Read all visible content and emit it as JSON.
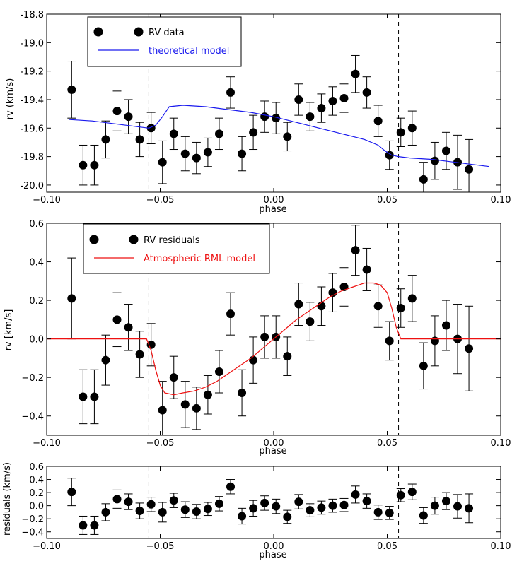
{
  "colors": {
    "data": "#000000",
    "model": "#1a1aee",
    "rml": "#ee1111"
  },
  "chart_data": [
    {
      "type": "scatter",
      "panel": "top",
      "xlabel": "phase",
      "ylabel": "rv (km/s)",
      "xlim": [
        -0.1,
        0.1
      ],
      "ylim": [
        -20.05,
        -18.8
      ],
      "xticks": [
        -0.1,
        -0.05,
        0.0,
        0.05,
        0.1
      ],
      "xtick_labels": [
        "−0.10",
        "−0.05",
        "0.00",
        "0.05",
        "0.10"
      ],
      "yticks": [
        -20.0,
        -19.8,
        -19.6,
        -19.4,
        -19.2,
        -19.0,
        -18.8
      ],
      "ytick_labels": [
        "-20.0",
        "-19.8",
        "-19.6",
        "-19.4",
        "-19.2",
        "-19.0",
        "-18.8"
      ],
      "vlines": [
        -0.055,
        0.055
      ],
      "legend": {
        "placement": "top-left",
        "entries": [
          {
            "label": "RV data",
            "style": "marker"
          },
          {
            "label": "theoretical model",
            "style": "line"
          }
        ]
      },
      "series": [
        {
          "name": "RV data",
          "x": [
            -0.089,
            -0.084,
            -0.079,
            -0.074,
            -0.069,
            -0.064,
            -0.059,
            -0.054,
            -0.049,
            -0.044,
            -0.039,
            -0.034,
            -0.029,
            -0.024,
            -0.019,
            -0.014,
            -0.009,
            -0.004,
            0.001,
            0.006,
            0.011,
            0.016,
            0.021,
            0.026,
            0.031,
            0.036,
            0.041,
            0.046,
            0.051,
            0.056,
            0.061,
            0.066,
            0.071,
            0.076,
            0.081,
            0.086
          ],
          "y": [
            -19.33,
            -19.86,
            -19.86,
            -19.68,
            -19.48,
            -19.52,
            -19.68,
            -19.6,
            -19.84,
            -19.64,
            -19.78,
            -19.81,
            -19.77,
            -19.64,
            -19.35,
            -19.78,
            -19.63,
            -19.52,
            -19.53,
            -19.66,
            -19.4,
            -19.52,
            -19.46,
            -19.41,
            -19.39,
            -19.22,
            -19.35,
            -19.55,
            -19.79,
            -19.63,
            -19.6,
            -19.96,
            -19.83,
            -19.76,
            -19.84,
            -19.89
          ],
          "err": [
            0.2,
            0.14,
            0.14,
            0.13,
            0.14,
            0.12,
            0.12,
            0.11,
            0.15,
            0.11,
            0.12,
            0.11,
            0.1,
            0.11,
            0.11,
            0.12,
            0.12,
            0.11,
            0.11,
            0.1,
            0.11,
            0.1,
            0.1,
            0.1,
            0.1,
            0.13,
            0.11,
            0.11,
            0.1,
            0.1,
            0.12,
            0.12,
            0.13,
            0.13,
            0.19,
            0.21
          ]
        },
        {
          "name": "theoretical model",
          "x": [
            -0.09,
            -0.08,
            -0.07,
            -0.06,
            -0.055,
            -0.052,
            -0.049,
            -0.046,
            -0.04,
            -0.03,
            -0.02,
            -0.01,
            0.0,
            0.01,
            0.02,
            0.03,
            0.04,
            0.046,
            0.049,
            0.052,
            0.055,
            0.06,
            0.07,
            0.08,
            0.09,
            0.095
          ],
          "y": [
            -19.54,
            -19.55,
            -19.57,
            -19.59,
            -19.6,
            -19.58,
            -19.52,
            -19.45,
            -19.44,
            -19.45,
            -19.47,
            -19.49,
            -19.52,
            -19.56,
            -19.6,
            -19.64,
            -19.68,
            -19.72,
            -19.76,
            -19.79,
            -19.8,
            -19.81,
            -19.82,
            -19.84,
            -19.86,
            -19.87
          ]
        }
      ]
    },
    {
      "type": "scatter",
      "panel": "middle",
      "xlabel": "phase",
      "ylabel": "rv [km/s]",
      "xlim": [
        -0.1,
        0.1
      ],
      "ylim": [
        -0.5,
        0.6
      ],
      "xticks": [
        -0.1,
        -0.05,
        0.0,
        0.05,
        0.1
      ],
      "xtick_labels": [
        "−0.10",
        "−0.05",
        "0.00",
        "0.05",
        "0.10"
      ],
      "yticks": [
        -0.4,
        -0.2,
        0.0,
        0.2,
        0.4,
        0.6
      ],
      "ytick_labels": [
        "−0.4",
        "−0.2",
        "0.0",
        "0.2",
        "0.4",
        "0.6"
      ],
      "vlines": [
        -0.055,
        0.055
      ],
      "legend": {
        "placement": "top-left",
        "entries": [
          {
            "label": "RV residuals",
            "style": "marker"
          },
          {
            "label": "Atmospheric RML model",
            "style": "line"
          }
        ]
      },
      "series": [
        {
          "name": "RV residuals",
          "x": [
            -0.089,
            -0.084,
            -0.079,
            -0.074,
            -0.069,
            -0.064,
            -0.059,
            -0.054,
            -0.049,
            -0.044,
            -0.039,
            -0.034,
            -0.029,
            -0.024,
            -0.019,
            -0.014,
            -0.009,
            -0.004,
            0.001,
            0.006,
            0.011,
            0.016,
            0.021,
            0.026,
            0.031,
            0.036,
            0.041,
            0.046,
            0.051,
            0.056,
            0.061,
            0.066,
            0.071,
            0.076,
            0.081,
            0.086
          ],
          "y": [
            0.21,
            -0.3,
            -0.3,
            -0.11,
            0.1,
            0.06,
            -0.08,
            -0.03,
            -0.37,
            -0.2,
            -0.34,
            -0.36,
            -0.29,
            -0.17,
            0.13,
            -0.28,
            -0.11,
            0.01,
            0.01,
            -0.09,
            0.18,
            0.09,
            0.17,
            0.24,
            0.27,
            0.46,
            0.36,
            0.17,
            -0.01,
            0.16,
            0.21,
            -0.14,
            -0.01,
            0.07,
            0.0,
            -0.05
          ],
          "err": [
            0.21,
            0.14,
            0.14,
            0.13,
            0.14,
            0.12,
            0.12,
            0.11,
            0.15,
            0.11,
            0.12,
            0.11,
            0.1,
            0.11,
            0.11,
            0.12,
            0.12,
            0.11,
            0.11,
            0.1,
            0.11,
            0.1,
            0.1,
            0.1,
            0.1,
            0.13,
            0.11,
            0.11,
            0.1,
            0.1,
            0.12,
            0.12,
            0.13,
            0.13,
            0.18,
            0.22
          ]
        },
        {
          "name": "Atmospheric RML model",
          "x": [
            -0.1,
            -0.056,
            -0.054,
            -0.052,
            -0.05,
            -0.048,
            -0.044,
            -0.04,
            -0.035,
            -0.03,
            -0.025,
            -0.02,
            -0.015,
            -0.01,
            -0.005,
            0.0,
            0.005,
            0.01,
            0.015,
            0.02,
            0.025,
            0.03,
            0.035,
            0.04,
            0.044,
            0.047,
            0.05,
            0.052,
            0.054,
            0.056,
            0.1
          ],
          "y": [
            0.0,
            0.0,
            -0.06,
            -0.16,
            -0.24,
            -0.28,
            -0.29,
            -0.28,
            -0.27,
            -0.25,
            -0.22,
            -0.18,
            -0.14,
            -0.1,
            -0.05,
            0.0,
            0.05,
            0.1,
            0.14,
            0.18,
            0.22,
            0.25,
            0.27,
            0.29,
            0.29,
            0.28,
            0.24,
            0.16,
            0.06,
            0.0,
            0.0
          ]
        }
      ]
    },
    {
      "type": "scatter",
      "panel": "bottom",
      "xlabel": "phase",
      "ylabel": "residuals (km/s)",
      "xlim": [
        -0.1,
        0.1
      ],
      "ylim": [
        -0.5,
        0.6
      ],
      "xticks": [
        -0.1,
        -0.05,
        0.0,
        0.05,
        0.1
      ],
      "xtick_labels": [
        "−0.10",
        "−0.05",
        "0.00",
        "0.05",
        "0.10"
      ],
      "yticks": [
        -0.4,
        -0.2,
        0.0,
        0.2,
        0.4,
        0.6
      ],
      "ytick_labels": [
        "−0.4",
        "−0.2",
        "0.0",
        "0.2",
        "0.4",
        "0.6"
      ],
      "vlines": [
        -0.055,
        0.055
      ],
      "series": [
        {
          "name": "residuals",
          "x": [
            -0.089,
            -0.084,
            -0.079,
            -0.074,
            -0.069,
            -0.064,
            -0.059,
            -0.054,
            -0.049,
            -0.044,
            -0.039,
            -0.034,
            -0.029,
            -0.024,
            -0.019,
            -0.014,
            -0.009,
            -0.004,
            0.001,
            0.006,
            0.011,
            0.016,
            0.021,
            0.026,
            0.031,
            0.036,
            0.041,
            0.046,
            0.051,
            0.056,
            0.061,
            0.066,
            0.071,
            0.076,
            0.081,
            0.086
          ],
          "y": [
            0.21,
            -0.3,
            -0.3,
            -0.1,
            0.1,
            0.06,
            -0.08,
            0.02,
            -0.1,
            0.08,
            -0.06,
            -0.09,
            -0.05,
            0.03,
            0.29,
            -0.16,
            -0.04,
            0.04,
            -0.01,
            -0.17,
            0.06,
            -0.07,
            -0.03,
            0.0,
            0.01,
            0.17,
            0.07,
            -0.1,
            -0.11,
            0.16,
            0.21,
            -0.15,
            0.0,
            0.07,
            -0.01,
            -0.04
          ],
          "err": [
            0.21,
            0.14,
            0.14,
            0.13,
            0.14,
            0.12,
            0.12,
            0.11,
            0.15,
            0.11,
            0.12,
            0.11,
            0.1,
            0.11,
            0.11,
            0.12,
            0.12,
            0.11,
            0.11,
            0.1,
            0.11,
            0.1,
            0.1,
            0.1,
            0.1,
            0.13,
            0.11,
            0.11,
            0.1,
            0.1,
            0.12,
            0.12,
            0.13,
            0.13,
            0.18,
            0.22
          ]
        }
      ]
    }
  ]
}
